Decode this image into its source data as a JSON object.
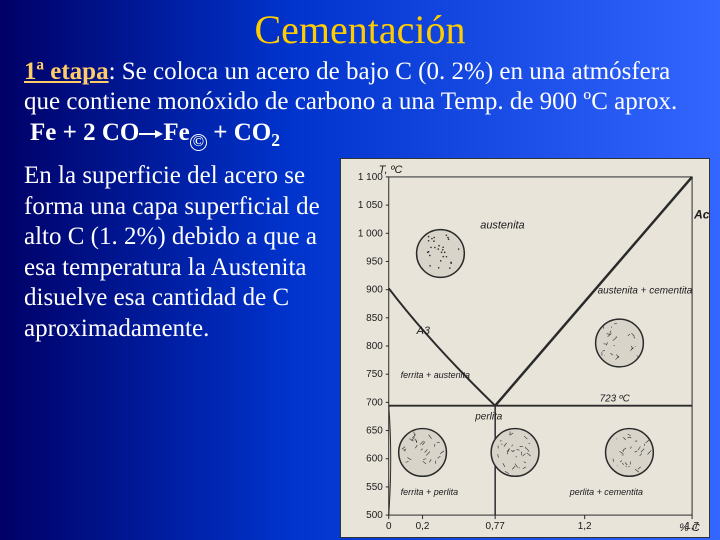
{
  "title": "Cementación",
  "intro": {
    "etapa_label": "1ª etapa",
    "text_after_label": ": Se coloca un acero de bajo C (0. 2%) en una atmósfera que contiene monóxido de carbono a una Temp. de 900 ºC  aprox."
  },
  "equation": {
    "lhs1": "Fe",
    "plus1": " + ",
    "lhs2": "2 CO",
    "rhs1": "Fe",
    "rhs1_sub": "©",
    "plus2": " + ",
    "rhs2": "CO",
    "rhs2_sub": "2"
  },
  "left_paragraph": "En la superficie del acero se forma una capa superficial de alto C (1. 2%) debido a que a esa temperatura la Austenita disuelve esa cantidad de C aproximadamente.",
  "diagram": {
    "y_label": "T, ºC",
    "x_label": "% C",
    "y_ticks": [
      "1 100",
      "1 050",
      "1 000",
      "950",
      "900",
      "850",
      "800",
      "750",
      "700",
      "650",
      "600",
      "550",
      "500"
    ],
    "x_ticks": [
      "0",
      "0,2",
      "0,77",
      "1,2",
      "1,7"
    ],
    "regions": {
      "austenite": "austenita",
      "aust_cement": "austenita + cementita",
      "ferr_aust": "ferrita + austenita",
      "perlite": "perlita",
      "ferr_perl": "ferrita + perlita",
      "perl_cement": "perlita + cementita"
    },
    "lines": {
      "Acm": "Acm",
      "A3": "A3",
      "eutectoid_temp": "723 ºC"
    },
    "colors": {
      "bg": "#e8e4da",
      "line": "#2a2a2a",
      "text": "#1a1a1a",
      "micro_bg": "#d8d4ca"
    }
  }
}
